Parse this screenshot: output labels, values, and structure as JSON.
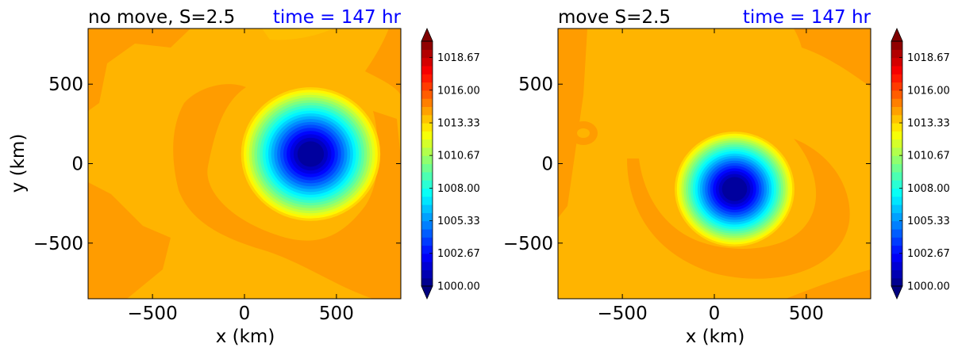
{
  "chart_data": [
    {
      "type": "contourf",
      "title": "no move, S=2.5",
      "time_label": "time = 147 hr",
      "xlabel": "x (km)",
      "ylabel": "y (km)",
      "xlim": [
        -850,
        850
      ],
      "ylim": [
        -850,
        850
      ],
      "xticks": [
        -500,
        0,
        500
      ],
      "yticks": [
        -500,
        0,
        500
      ],
      "xtick_labels": [
        "−500",
        "0",
        "500"
      ],
      "ytick_labels": [
        "−500",
        "0",
        "500"
      ],
      "background_level": 1014.5,
      "low_center": {
        "x": 360,
        "y": 60,
        "min_value": 1000.0
      },
      "colorbar": {
        "min": 1000.0,
        "max": 1020.0,
        "tick_values": [
          1000.0,
          1002.67,
          1005.33,
          1008.0,
          1010.67,
          1013.33,
          1016.0,
          1018.67
        ],
        "tick_labels": [
          "1000.00",
          "1002.67",
          "1005.33",
          "1008.00",
          "1010.67",
          "1013.33",
          "1016.00",
          "1018.67"
        ],
        "extend": "both"
      }
    },
    {
      "type": "contourf",
      "title": "move S=2.5",
      "time_label": "time = 147 hr",
      "xlabel": "x (km)",
      "ylabel": "",
      "xlim": [
        -850,
        850
      ],
      "ylim": [
        -850,
        850
      ],
      "xticks": [
        -500,
        0,
        500
      ],
      "yticks": [
        -500,
        0,
        500
      ],
      "xtick_labels": [
        "−500",
        "0",
        "500"
      ],
      "ytick_labels": [
        "−500",
        "0",
        "500"
      ],
      "background_level": 1014.5,
      "low_center": {
        "x": 110,
        "y": -160,
        "min_value": 1000.0
      },
      "colorbar": {
        "min": 1000.0,
        "max": 1020.0,
        "tick_values": [
          1000.0,
          1002.67,
          1005.33,
          1008.0,
          1010.67,
          1013.33,
          1016.0,
          1018.67
        ],
        "tick_labels": [
          "1000.00",
          "1002.67",
          "1005.33",
          "1008.00",
          "1010.67",
          "1013.33",
          "1016.00",
          "1018.67"
        ],
        "extend": "both"
      }
    }
  ],
  "colors": {
    "title": "#000000",
    "time_label": "#0000ff",
    "jet": [
      "#00007f",
      "#0000ff",
      "#007fff",
      "#00ffff",
      "#7fff7f",
      "#ffff00",
      "#ff7f00",
      "#ff0000",
      "#7f0000"
    ]
  }
}
